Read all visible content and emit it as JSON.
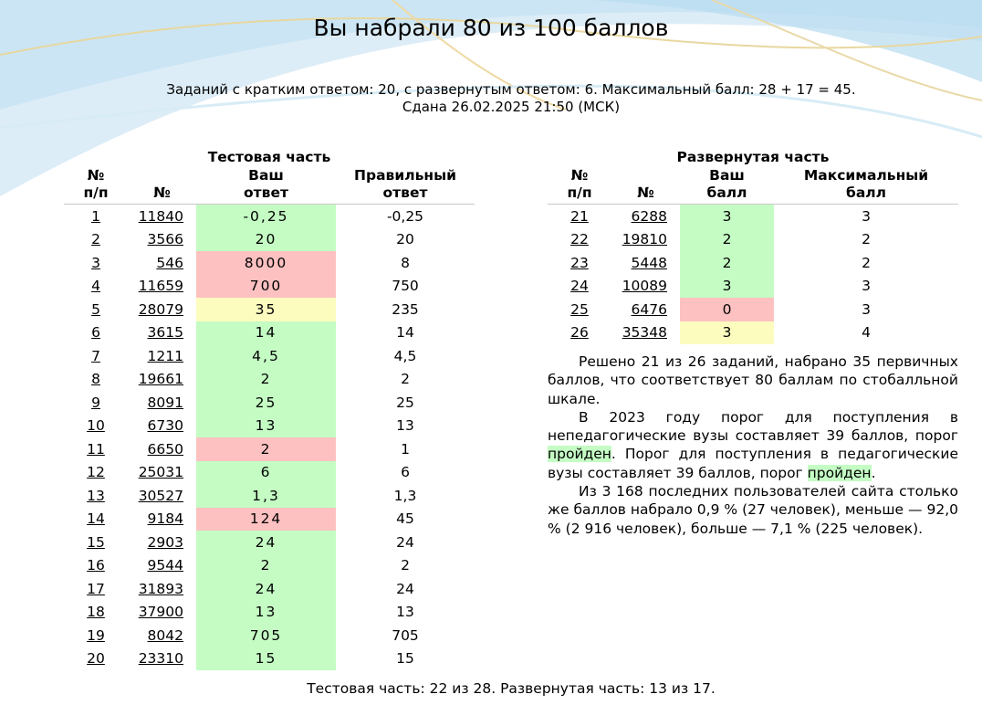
{
  "title": "Вы набрали 80 из 100 баллов",
  "info_line1": "Заданий с кратким ответом: 20, с развернутым ответом: 6. Максимальный балл: 28 + 17 = 45.",
  "info_line2": "Сдана 26.02.2025 21:50 (МСК)",
  "test": {
    "caption": "Тестовая часть",
    "headers": [
      "№ п/п",
      "№",
      "Ваш ответ",
      "Правильный ответ"
    ],
    "rows": [
      {
        "n": "1",
        "id": "11840",
        "answer": "-0,25",
        "correct": "-0,25",
        "status": "green"
      },
      {
        "n": "2",
        "id": "3566",
        "answer": "20",
        "correct": "20",
        "status": "green"
      },
      {
        "n": "3",
        "id": "546",
        "answer": "8000",
        "correct": "8",
        "status": "red"
      },
      {
        "n": "4",
        "id": "11659",
        "answer": "700",
        "correct": "750",
        "status": "red"
      },
      {
        "n": "5",
        "id": "28079",
        "answer": "35",
        "correct": "235",
        "status": "yellow"
      },
      {
        "n": "6",
        "id": "3615",
        "answer": "14",
        "correct": "14",
        "status": "green"
      },
      {
        "n": "7",
        "id": "1211",
        "answer": "4,5",
        "correct": "4,5",
        "status": "green"
      },
      {
        "n": "8",
        "id": "19661",
        "answer": "2",
        "correct": "2",
        "status": "green"
      },
      {
        "n": "9",
        "id": "8091",
        "answer": "25",
        "correct": "25",
        "status": "green"
      },
      {
        "n": "10",
        "id": "6730",
        "answer": "13",
        "correct": "13",
        "status": "green"
      },
      {
        "n": "11",
        "id": "6650",
        "answer": "2",
        "correct": "1",
        "status": "red"
      },
      {
        "n": "12",
        "id": "25031",
        "answer": "6",
        "correct": "6",
        "status": "green"
      },
      {
        "n": "13",
        "id": "30527",
        "answer": "1,3",
        "correct": "1,3",
        "status": "green"
      },
      {
        "n": "14",
        "id": "9184",
        "answer": "124",
        "correct": "45",
        "status": "red"
      },
      {
        "n": "15",
        "id": "2903",
        "answer": "24",
        "correct": "24",
        "status": "green"
      },
      {
        "n": "16",
        "id": "9544",
        "answer": "2",
        "correct": "2",
        "status": "green"
      },
      {
        "n": "17",
        "id": "31893",
        "answer": "24",
        "correct": "24",
        "status": "green"
      },
      {
        "n": "18",
        "id": "37900",
        "answer": "13",
        "correct": "13",
        "status": "green"
      },
      {
        "n": "19",
        "id": "8042",
        "answer": "705",
        "correct": "705",
        "status": "green"
      },
      {
        "n": "20",
        "id": "23310",
        "answer": "15",
        "correct": "15",
        "status": "green"
      }
    ]
  },
  "full": {
    "caption": "Развернутая часть",
    "headers": [
      "№ п/п",
      "№",
      "Ваш балл",
      "Максимальный балл"
    ],
    "rows": [
      {
        "n": "21",
        "id": "6288",
        "score": "3",
        "max": "3",
        "status": "green"
      },
      {
        "n": "22",
        "id": "19810",
        "score": "2",
        "max": "2",
        "status": "green"
      },
      {
        "n": "23",
        "id": "5448",
        "score": "2",
        "max": "2",
        "status": "green"
      },
      {
        "n": "24",
        "id": "10089",
        "score": "3",
        "max": "3",
        "status": "green"
      },
      {
        "n": "25",
        "id": "6476",
        "score": "0",
        "max": "3",
        "status": "red"
      },
      {
        "n": "26",
        "id": "35348",
        "score": "3",
        "max": "4",
        "status": "yellow"
      }
    ]
  },
  "summary": {
    "p1": "Решено 21 из 26 заданий, набрано 35 первичных баллов, что соответствует 80 баллам по стобалльной шкале.",
    "p2_a": "В 2023 году порог для поступления в непедагогические вузы составляет 39 баллов, порог ",
    "p2_hl1": "пройден",
    "p2_b": ". Порог для поступления в педагогические вузы составляет 39 баллов, порог ",
    "p2_hl2": "пройден",
    "p2_c": ".",
    "p3": "Из 3 168 последних пользователей сайта столько же баллов набрало 0,9 % (27 человек), меньше — 92,0 % (2 916 человек), больше — 7,1 % (225 человек)."
  },
  "footer": "Тестовая часть: 22 из 28. Развернутая часть: 13 из 17.",
  "colors": {
    "correct": "#c4fcc4",
    "wrong": "#fdc1c1",
    "partial": "#fcfcbf"
  }
}
